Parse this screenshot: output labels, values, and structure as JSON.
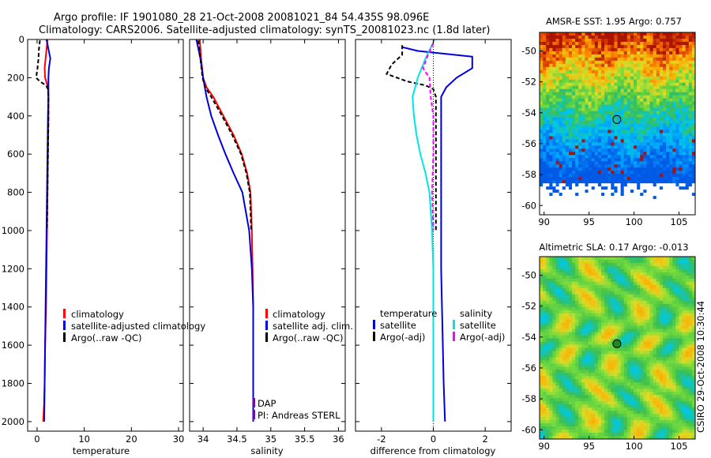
{
  "header": {
    "line1": "Argo profile: IF 1901080_28 21-Oct-2008 20081021_84 54.435S 98.096E",
    "line2": "Climatology: CARS2006. Satellite-adjusted climatology: synTS_20081023.nc (1.8d later)"
  },
  "stamp": "CSIRO 29-Oct-2008 10:30:44",
  "colors": {
    "climatology": "#ff0000",
    "satellite": "#0000dd",
    "argo": "#000000",
    "satellite_salinity": "#00e5e5",
    "argo_salinity": "#ff00ff",
    "dap": "#6a0dad"
  },
  "chart_data": [
    {
      "type": "line",
      "id": "temperature",
      "xlabel": "temperature",
      "xlim": [
        -2,
        31
      ],
      "ylim": [
        0,
        2050
      ],
      "y_reversed": true,
      "xticks": [
        0,
        10,
        20,
        30
      ],
      "yticks": [
        0,
        200,
        400,
        600,
        800,
        1000,
        1200,
        1400,
        1600,
        1800,
        2000
      ],
      "legend": [
        {
          "label": "climatology",
          "color": "#ff0000"
        },
        {
          "label": "satellite-adjusted climatology",
          "color": "#0000dd"
        },
        {
          "label": "Argo(..raw -QC)",
          "color": "#000000"
        }
      ],
      "series": [
        {
          "name": "climatology",
          "color": "#ff0000",
          "dash": "",
          "x": [
            2.2,
            2.0,
            1.8,
            1.6,
            1.7,
            2.3,
            2.4,
            2.4,
            2.3,
            2.2,
            2.1,
            2.0,
            1.9,
            1.8,
            1.7,
            1.6,
            1.5,
            1.3
          ],
          "depth": [
            0,
            50,
            100,
            150,
            200,
            250,
            300,
            400,
            600,
            800,
            1000,
            1200,
            1400,
            1500,
            1600,
            1800,
            1900,
            2000
          ]
        },
        {
          "name": "satellite-adjusted climatology",
          "color": "#0000dd",
          "dash": "",
          "x": [
            2.0,
            2.4,
            2.8,
            2.5,
            2.4,
            2.4,
            2.3,
            2.2,
            2.1,
            2.0,
            1.9,
            1.8,
            1.7,
            1.5
          ],
          "depth": [
            0,
            50,
            100,
            150,
            200,
            300,
            400,
            600,
            800,
            1000,
            1200,
            1400,
            1600,
            2000
          ]
        },
        {
          "name": "Argo(..raw -QC)",
          "color": "#000000",
          "dash": "5,3",
          "x": [
            0.6,
            0.4,
            0.3,
            0.1,
            -0.2,
            0.6,
            1.9,
            2.3,
            2.4,
            2.4,
            2.3,
            2.2,
            2.1
          ],
          "depth": [
            5,
            50,
            100,
            150,
            200,
            220,
            240,
            260,
            300,
            400,
            600,
            800,
            1000
          ]
        }
      ]
    },
    {
      "type": "line",
      "id": "salinity",
      "xlabel": "salinity",
      "xlim": [
        33.8,
        36.1
      ],
      "ylim": [
        0,
        2050
      ],
      "y_reversed": true,
      "xticks": [
        34,
        34.5,
        35,
        35.5,
        36
      ],
      "legend": [
        {
          "label": "climatology",
          "color": "#ff0000"
        },
        {
          "label": "satellite adj. clim.",
          "color": "#0000dd"
        },
        {
          "label": "Argo(..raw -QC)",
          "color": "#000000"
        }
      ],
      "annotations": [
        {
          "label": "DAP",
          "color": "#6a0dad"
        },
        {
          "label": "PI: Andreas STERL",
          "color": "#6a0dad"
        }
      ],
      "series": [
        {
          "name": "climatology",
          "color": "#ff0000",
          "dash": "",
          "x": [
            33.95,
            33.97,
            34.0,
            34.05,
            34.15,
            34.3,
            34.45,
            34.57,
            34.65,
            34.7,
            34.72,
            34.73,
            34.74,
            34.74,
            34.74
          ],
          "depth": [
            0,
            100,
            200,
            250,
            300,
            400,
            500,
            600,
            700,
            800,
            1000,
            1200,
            1400,
            1700,
            2000
          ]
        },
        {
          "name": "satellite adj. clim.",
          "color": "#0000dd",
          "dash": "",
          "x": [
            33.9,
            33.96,
            34.0,
            34.05,
            34.12,
            34.22,
            34.33,
            34.45,
            34.58,
            34.68,
            34.72,
            34.74,
            34.74,
            34.74
          ],
          "depth": [
            0,
            100,
            200,
            300,
            400,
            500,
            600,
            700,
            800,
            1000,
            1200,
            1400,
            1700,
            2000
          ]
        },
        {
          "name": "Argo(..raw -QC)",
          "color": "#000000",
          "dash": "5,3",
          "x": [
            33.93,
            33.96,
            33.99,
            34.03,
            34.12,
            34.28,
            34.43,
            34.56,
            34.64,
            34.69,
            34.7,
            34.71
          ],
          "depth": [
            5,
            100,
            200,
            250,
            300,
            400,
            500,
            600,
            700,
            800,
            900,
            1000
          ]
        }
      ]
    },
    {
      "type": "line",
      "id": "difference",
      "xlabel": "difference from climatology",
      "xlim": [
        -3,
        3
      ],
      "ylim": [
        0,
        2050
      ],
      "y_reversed": true,
      "xticks": [
        -2,
        0,
        2
      ],
      "zero_line": true,
      "legend": [
        {
          "label": "temperature",
          "color": ""
        },
        {
          "label": "satellite",
          "color": "#0000dd"
        },
        {
          "label": "Argo(-adj)",
          "color": "#000000"
        },
        {
          "label": "salinity",
          "color": ""
        },
        {
          "label": "satellite",
          "color": "#00e5e5"
        },
        {
          "label": "Argo(-adj)",
          "color": "#ff00ff"
        }
      ],
      "series": [
        {
          "name": "temperature satellite",
          "color": "#0000dd",
          "dash": "",
          "x": [
            -1.2,
            -0.6,
            1.5,
            1.5,
            0.9,
            0.5,
            0.3,
            0.3,
            0.3,
            0.3,
            0.35,
            0.4,
            0.45
          ],
          "depth": [
            40,
            60,
            90,
            150,
            200,
            250,
            300,
            400,
            800,
            1200,
            1500,
            1800,
            2000
          ]
        },
        {
          "name": "temperature Argo(-adj)",
          "color": "#000000",
          "dash": "5,3",
          "x": [
            -1.2,
            -1.2,
            -1.6,
            -1.8,
            -1.0,
            -0.3,
            0.0,
            0.1,
            0.1,
            0.1
          ],
          "depth": [
            30,
            80,
            130,
            180,
            220,
            240,
            260,
            300,
            600,
            1000
          ]
        },
        {
          "name": "salinity satellite",
          "color": "#00e5e5",
          "dash": "",
          "x": [
            0.05,
            -0.3,
            -0.6,
            -0.8,
            -0.75,
            -0.65,
            -0.5,
            -0.3,
            -0.15,
            -0.05,
            0.0,
            0.0
          ],
          "depth": [
            0,
            100,
            200,
            300,
            400,
            500,
            600,
            700,
            800,
            1000,
            1200,
            2000
          ]
        },
        {
          "name": "salinity Argo(-adj)",
          "color": "#ff00ff",
          "dash": "5,3",
          "x": [
            0.0,
            -0.2,
            -0.4,
            -0.15,
            -0.1,
            0.0,
            0.0,
            -0.05,
            0.0
          ],
          "depth": [
            20,
            80,
            150,
            200,
            300,
            400,
            600,
            800,
            1000
          ]
        }
      ]
    },
    {
      "type": "heatmap",
      "id": "sst",
      "title": "AMSR-E SST: 1.95 Argo: 0.757",
      "xlim": [
        89.5,
        106.8
      ],
      "ylim": [
        -60.6,
        -48.8
      ],
      "xticks": [
        90,
        95,
        100,
        105
      ],
      "yticks": [
        -50,
        -52,
        -54,
        -56,
        -58,
        -60
      ],
      "marker": {
        "lon": 98.096,
        "lat": -54.435
      }
    },
    {
      "type": "heatmap",
      "id": "sla",
      "title": "Altimetric SLA: 0.17 Argo: -0.013",
      "xlim": [
        89.5,
        106.8
      ],
      "ylim": [
        -60.6,
        -48.8
      ],
      "xticks": [
        90,
        95,
        100,
        105
      ],
      "yticks": [
        -50,
        -52,
        -54,
        -56,
        -58,
        -60
      ],
      "marker": {
        "lon": 98.096,
        "lat": -54.435
      }
    }
  ]
}
